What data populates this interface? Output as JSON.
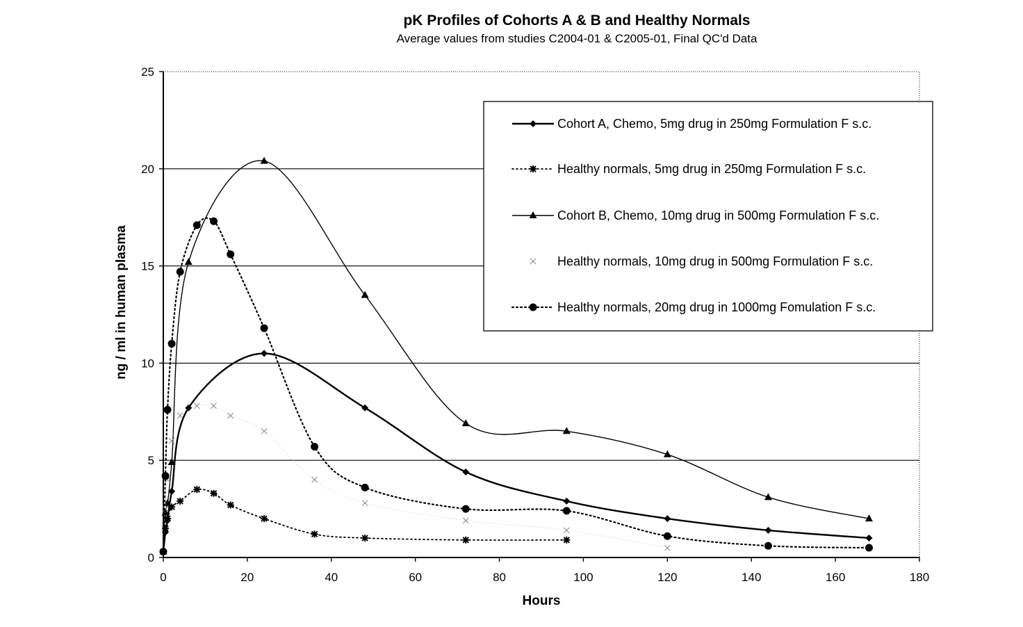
{
  "chart_data": {
    "type": "line",
    "title": "pK Profiles of Cohorts A & B and Healthy Normals",
    "subtitle": "Average values from studies C2004-01 & C2005-01, Final QC'd Data",
    "xlabel": "Hours",
    "ylabel": "ng / ml in human plasma",
    "xlim": [
      0,
      180
    ],
    "ylim": [
      0,
      25
    ],
    "xticks": [
      "0",
      "20",
      "40",
      "60",
      "80",
      "100",
      "120",
      "140",
      "160",
      "180"
    ],
    "yticks": [
      "0",
      "5",
      "10",
      "15",
      "20",
      "25"
    ],
    "grid": "horizontal",
    "legend_position": "top-right",
    "series": [
      {
        "name": "Cohort A, Chemo, 5mg drug in 250mg Formulation F s.c.",
        "line": "solid",
        "marker": "diamond",
        "width": 2.4,
        "x": [
          0,
          0.5,
          1,
          2,
          6,
          24,
          48,
          72,
          96,
          120,
          144,
          168
        ],
        "y": [
          0.3,
          1.3,
          1.9,
          3.4,
          7.7,
          10.5,
          7.7,
          4.4,
          2.9,
          2.0,
          1.4,
          1.0
        ]
      },
      {
        "name": "Healthy normals, 5mg drug in 250mg Formulation F s.c.",
        "line": "dotted",
        "marker": "asterisk",
        "width": 1.8,
        "x": [
          0,
          0.5,
          1,
          2,
          4,
          8,
          12,
          16,
          24,
          36,
          48,
          72,
          96
        ],
        "y": [
          0.3,
          1.5,
          2.0,
          2.6,
          2.9,
          3.5,
          3.3,
          2.7,
          2.0,
          1.2,
          1.0,
          0.9,
          0.9
        ]
      },
      {
        "name": "Cohort B, Chemo, 10mg drug in 500mg Formulation F s.c.",
        "line": "solid",
        "marker": "triangle",
        "width": 1.4,
        "x": [
          0,
          0.5,
          1,
          2,
          6,
          24,
          48,
          72,
          96,
          120,
          144,
          168
        ],
        "y": [
          0.3,
          2.3,
          2.8,
          4.9,
          15.2,
          20.4,
          13.5,
          6.9,
          6.5,
          5.3,
          3.1,
          2.0
        ]
      },
      {
        "name": "Healthy normals, 10mg drug in 500mg Formulation F s.c.",
        "line": "faint",
        "marker": "cross",
        "width": 0.8,
        "x": [
          0,
          0.5,
          1,
          2,
          4,
          8,
          12,
          16,
          24,
          36,
          48,
          72,
          96,
          120
        ],
        "y": [
          0.3,
          2.5,
          4.0,
          6.0,
          7.3,
          7.8,
          7.8,
          7.3,
          6.5,
          4.0,
          2.8,
          1.9,
          1.4,
          0.5
        ]
      },
      {
        "name": "Healthy normals, 20mg drug in 1000mg Fomulation F s.c.",
        "line": "dotted",
        "marker": "circle",
        "width": 2.2,
        "x": [
          0,
          0.5,
          1,
          2,
          4,
          8,
          12,
          16,
          24,
          36,
          48,
          72,
          96,
          120,
          144,
          168
        ],
        "y": [
          0.3,
          4.2,
          7.6,
          11.0,
          14.7,
          17.1,
          17.3,
          15.6,
          11.8,
          5.7,
          3.6,
          2.5,
          2.4,
          1.1,
          0.6,
          0.5
        ]
      }
    ]
  }
}
